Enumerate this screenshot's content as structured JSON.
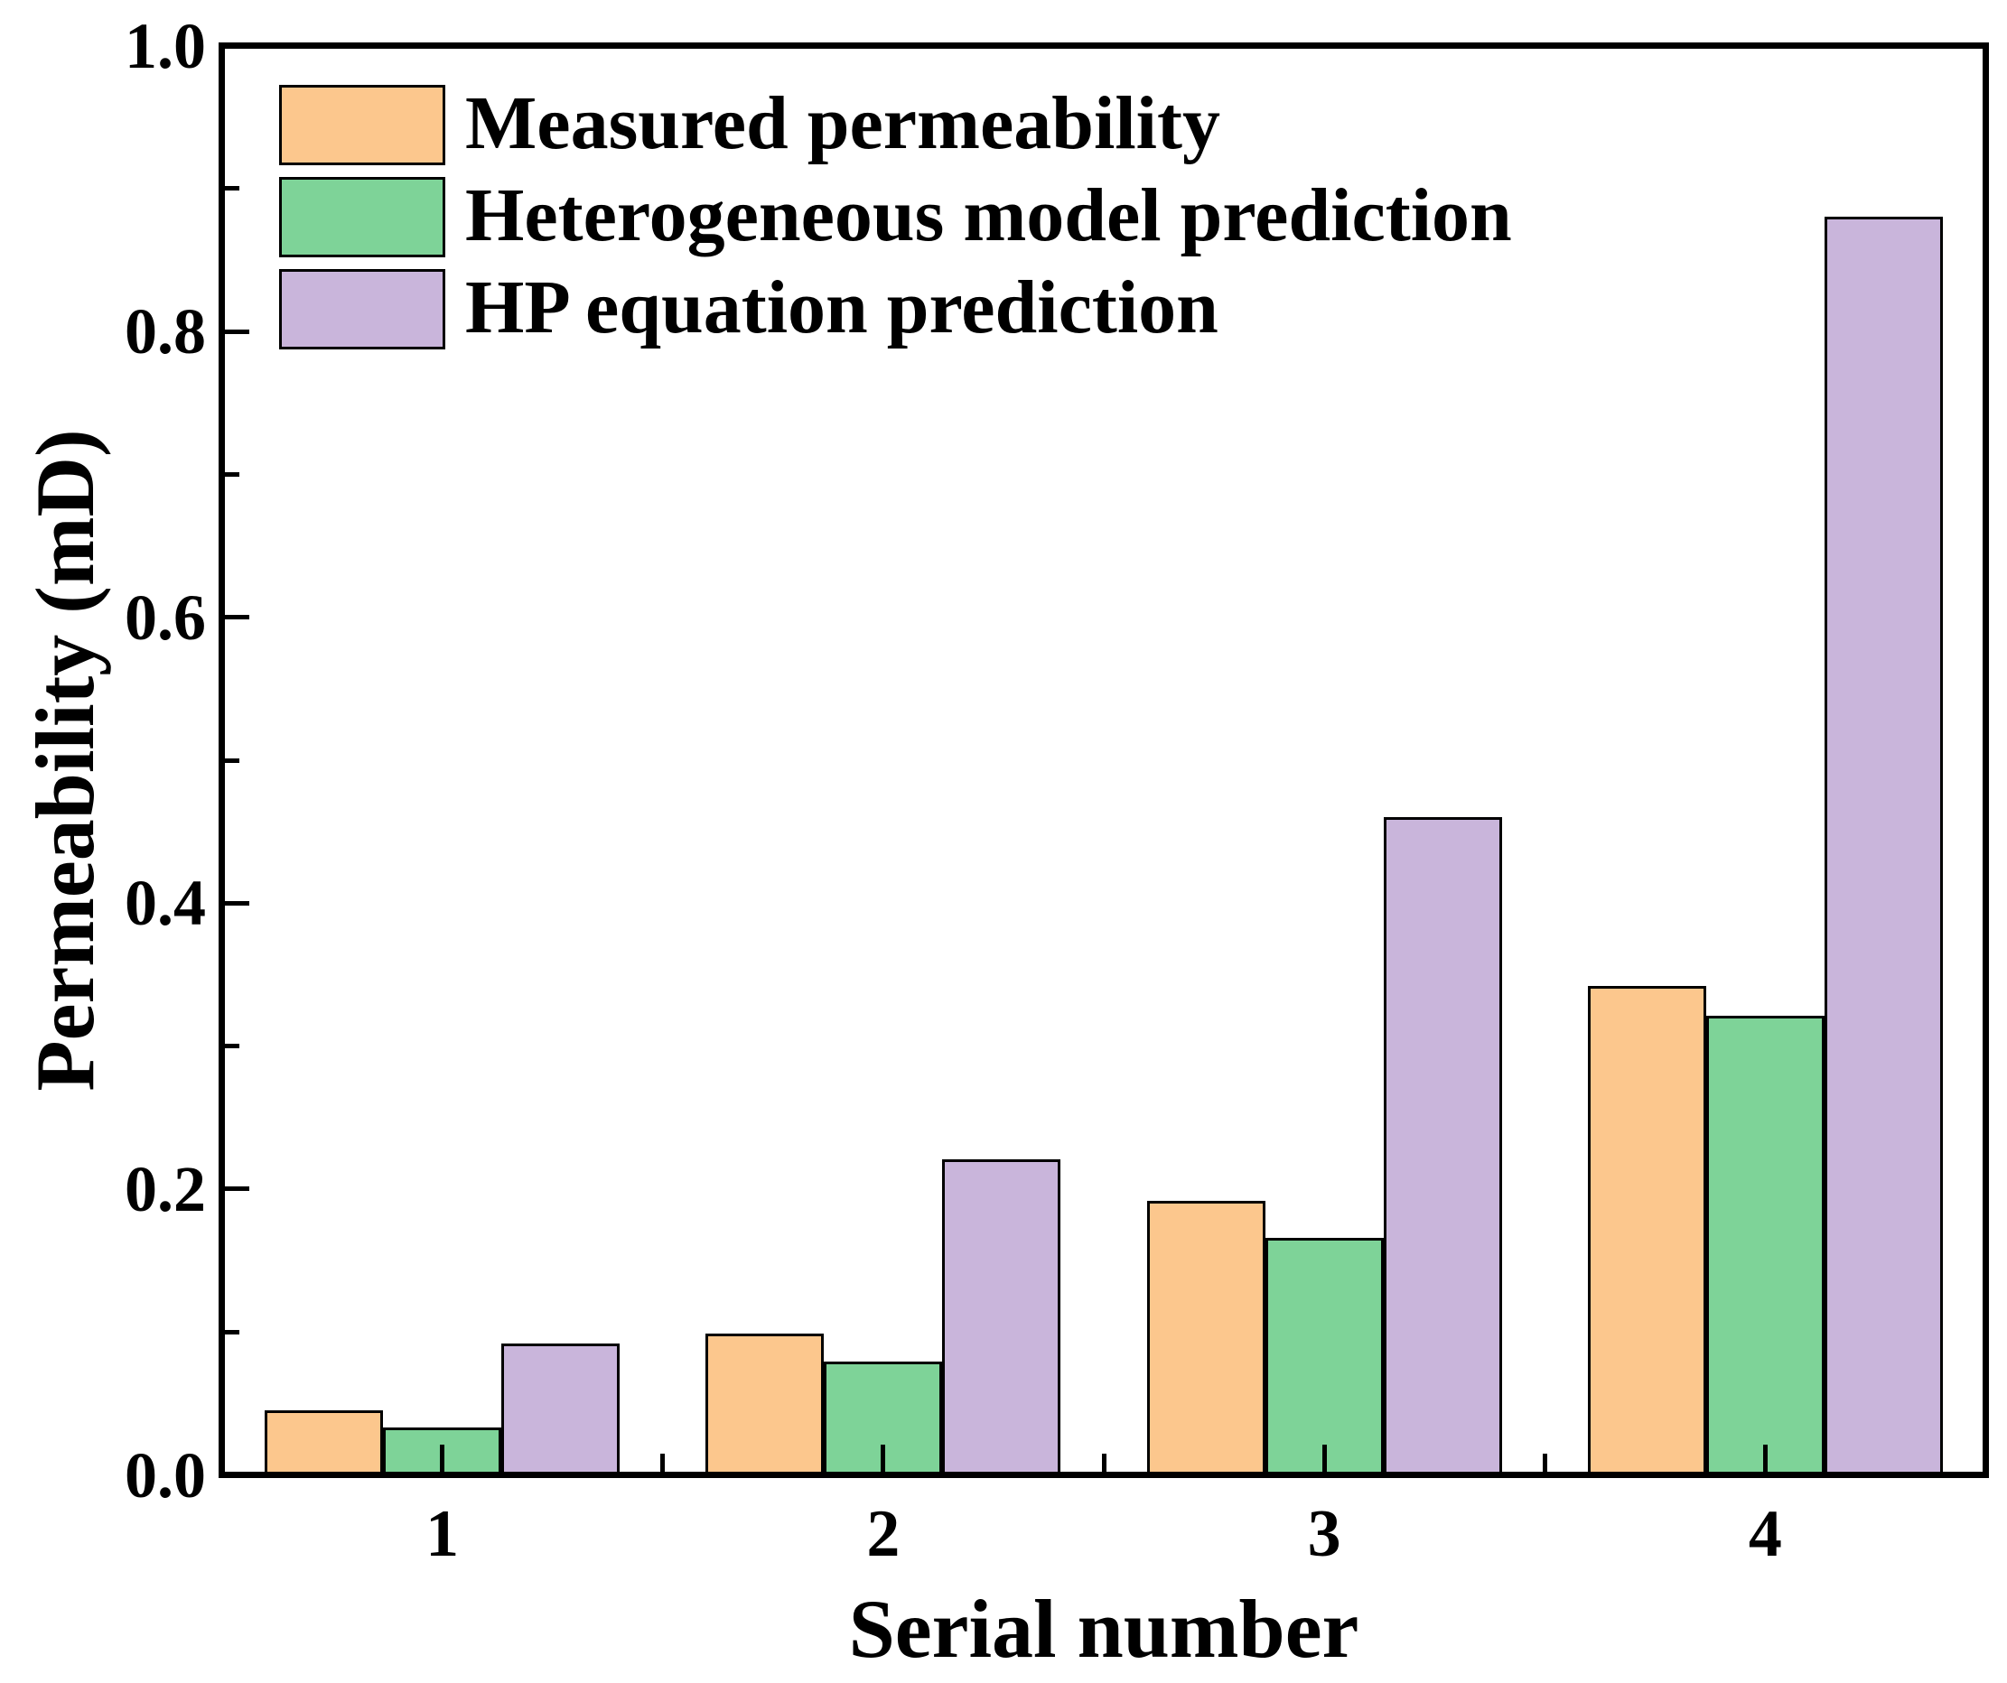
{
  "figure": {
    "background": "#ffffff",
    "axis_color": "#000000"
  },
  "chart_data": {
    "type": "bar",
    "categories": [
      "1",
      "2",
      "3",
      "4"
    ],
    "series": [
      {
        "name": "Measured permeability",
        "color": "#FCC78D",
        "values": [
          0.045,
          0.099,
          0.192,
          0.342
        ]
      },
      {
        "name": "Heterogeneous model prediction",
        "color": "#7ED398",
        "values": [
          0.033,
          0.079,
          0.166,
          0.321
        ]
      },
      {
        "name": "HP equation prediction",
        "color": "#C9B5DB",
        "values": [
          0.092,
          0.221,
          0.46,
          0.88
        ]
      }
    ],
    "xlabel": "Serial number",
    "ylabel": "Permeability (mD)",
    "ylim": [
      0.0,
      1.0
    ],
    "ytick_major": [
      0.0,
      0.2,
      0.4,
      0.6,
      0.8,
      1.0
    ],
    "ytick_labels": [
      "0.0",
      "0.2",
      "0.4",
      "0.6",
      "0.8",
      "1.0"
    ],
    "ytick_minor_step": 0.1,
    "grid": false,
    "legend_position": "top-left",
    "bar_edge_color": "#000000"
  }
}
